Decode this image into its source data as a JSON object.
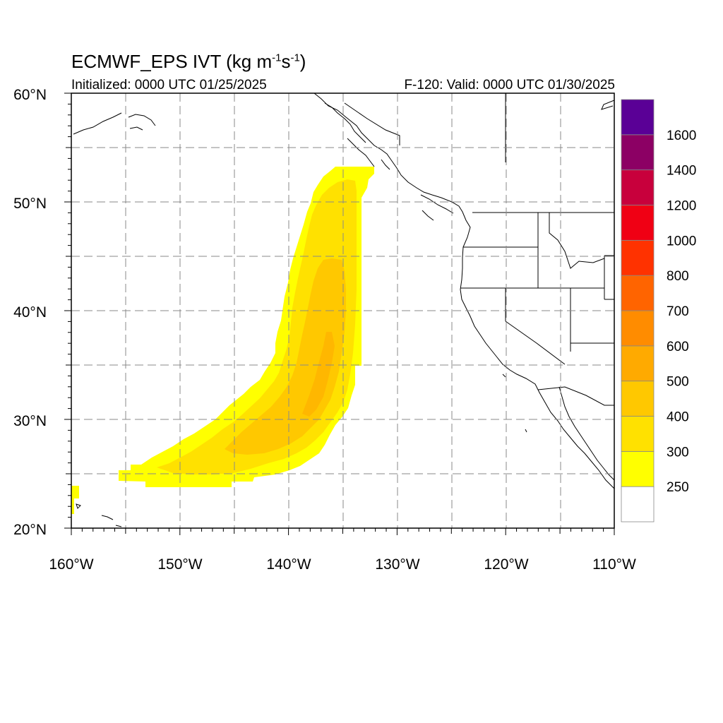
{
  "header": {
    "title_main": "ECMWF_EPS IVT (kg m",
    "title_exp1": "-1",
    "title_mid": "s",
    "title_exp2": "-1",
    "title_end": ")",
    "initialized": "Initialized: 0000 UTC 01/25/2025",
    "valid": "F-120: Valid: 0000 UTC 01/30/2025"
  },
  "axes": {
    "lon_labels": [
      "160°W",
      "150°W",
      "140°W",
      "130°W",
      "120°W",
      "110°W"
    ],
    "lat_labels": [
      "20°N",
      "30°N",
      "40°N",
      "50°N",
      "60°N"
    ],
    "lon_range": [
      -160,
      -110
    ],
    "lat_range": [
      20,
      60
    ],
    "grid": true
  },
  "colorbar": {
    "labels": [
      "250",
      "300",
      "400",
      "500",
      "600",
      "700",
      "800",
      "1000",
      "1200",
      "1400",
      "1600"
    ],
    "colors": [
      "#ffffff",
      "#ffff00",
      "#ffe100",
      "#ffc800",
      "#ffaa00",
      "#ff8c00",
      "#ff6400",
      "#ff3200",
      "#f00014",
      "#c8003c",
      "#8c0064",
      "#5a0096"
    ]
  },
  "field_colors": {
    "c250": "#ffff00",
    "c300": "#ffe100",
    "c400": "#ffc800",
    "c500": "#ffaa00"
  }
}
